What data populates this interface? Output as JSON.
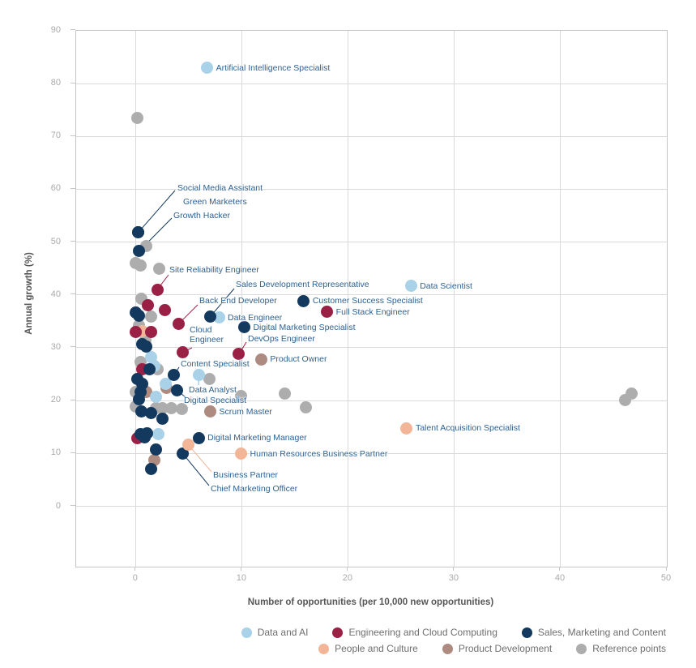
{
  "chart_data": {
    "type": "scatter",
    "title": "",
    "xlabel": "Number of opportunities (per 10,000 new opportunities)",
    "ylabel": "Annual growth (%)",
    "x_ticks": [
      0,
      10,
      20,
      30,
      40,
      50
    ],
    "y_ticks": [
      0,
      10,
      20,
      30,
      40,
      50,
      60,
      70,
      80,
      90
    ],
    "xlim": [
      -5.6,
      50.1
    ],
    "ylim": [
      -11.4,
      90
    ],
    "grid": true,
    "legend_position": "bottom-right",
    "categories": [
      {
        "id": "data_ai",
        "label": "Data and AI",
        "color": "#a9d1e8"
      },
      {
        "id": "engineering",
        "label": "Engineering and Cloud Computing",
        "color": "#9b2045"
      },
      {
        "id": "sales",
        "label": "Sales, Marketing and Content",
        "color": "#14395e"
      },
      {
        "id": "people",
        "label": "People and Culture",
        "color": "#f3b597"
      },
      {
        "id": "product",
        "label": "Product Development",
        "color": "#ae8b80"
      },
      {
        "id": "reference",
        "label": "Reference points",
        "color": "#adadad"
      }
    ],
    "labeled_points": [
      {
        "id": "artificial_intelligence_specialist",
        "name": "Artificial Intelligence Specialist",
        "category": "data_ai",
        "x": 6.7,
        "y": 83
      },
      {
        "id": "data_scientist",
        "name": "Data Scientist",
        "category": "data_ai",
        "x": 25.9,
        "y": 41.7
      },
      {
        "id": "data_engineer",
        "name": "Data Engineer",
        "category": "data_ai",
        "x": 7.8,
        "y": 35.7
      },
      {
        "id": "data_analyst",
        "name": "Data Analyst",
        "category": "data_ai",
        "x": 5.9,
        "y": 24.9
      },
      {
        "id": "social_media_assistant",
        "name": "Social Media Assistant",
        "category": "sales",
        "x": 0.2,
        "y": 51.8
      },
      {
        "id": "green_marketers",
        "name": "Green Marketers",
        "category": "sales",
        "x": 0.2,
        "y": 51.8
      },
      {
        "id": "growth_hacker",
        "name": "Growth Hacker",
        "category": "sales",
        "x": 0.3,
        "y": 48.3
      },
      {
        "id": "sales_development_representative",
        "name": "Sales Development Representative",
        "category": "sales",
        "x": 7.0,
        "y": 35.9
      },
      {
        "id": "digital_marketing_specialist",
        "name": "Digital Marketing Specialist",
        "category": "sales",
        "x": 10.2,
        "y": 33.9
      },
      {
        "id": "customer_success_specialist",
        "name": "Customer Success Specialist",
        "category": "sales",
        "x": 15.8,
        "y": 38.9
      },
      {
        "id": "content_specialist",
        "name": "Content Specialist",
        "category": "sales",
        "x": 3.6,
        "y": 24.9
      },
      {
        "id": "digital_specialist",
        "name": "Digital Specialist",
        "category": "sales",
        "x": 3.9,
        "y": 21.9
      },
      {
        "id": "digital_marketing_manager",
        "name": "Digital Marketing Manager",
        "category": "sales",
        "x": 5.9,
        "y": 12.9
      },
      {
        "id": "chief_marketing_officer",
        "name": "Chief Marketing Officer",
        "category": "sales",
        "x": 4.4,
        "y": 10
      },
      {
        "id": "site_reliability_engineer",
        "name": "Site Reliability Engineer",
        "category": "engineering",
        "x": 2.0,
        "y": 41
      },
      {
        "id": "back_end_developer",
        "name": "Back End Developer",
        "category": "engineering",
        "x": 4.0,
        "y": 34.5
      },
      {
        "id": "full_stack_engineer",
        "name": "Full Stack Engineer",
        "category": "engineering",
        "x": 18.0,
        "y": 36.8
      },
      {
        "id": "cloud_engineer",
        "name": "Cloud Engineer",
        "category": "engineering",
        "x": 4.4,
        "y": 29.2
      },
      {
        "id": "devops_engineer",
        "name": "DevOps Engineer",
        "category": "engineering",
        "x": 9.7,
        "y": 28.8
      },
      {
        "id": "product_owner",
        "name": "Product Owner",
        "category": "product",
        "x": 11.8,
        "y": 27.8
      },
      {
        "id": "scrum_master",
        "name": "Scrum Master",
        "category": "product",
        "x": 7.0,
        "y": 17.9
      },
      {
        "id": "business_partner",
        "name": "Business Partner",
        "category": "people",
        "x": 4.9,
        "y": 11.7
      },
      {
        "id": "human_resources_business_partner",
        "name": "Human Resources Business Partner",
        "category": "people",
        "x": 9.9,
        "y": 9.9
      },
      {
        "id": "talent_acquisition_specialist",
        "name": "Talent Acquisition Specialist",
        "category": "people",
        "x": 25.5,
        "y": 14.8
      }
    ],
    "unlabeled_points": [
      {
        "c": "reference",
        "x": 0.1,
        "y": 73.5
      },
      {
        "c": "reference",
        "x": 1.0,
        "y": 49.2
      },
      {
        "c": "reference",
        "x": 0.0,
        "y": 46.1
      },
      {
        "c": "reference",
        "x": 0.4,
        "y": 45.6
      },
      {
        "c": "reference",
        "x": 2.2,
        "y": 44.9
      },
      {
        "c": "reference",
        "x": 0.5,
        "y": 39.3
      },
      {
        "c": "reference",
        "x": 1.4,
        "y": 35.9
      },
      {
        "c": "reference",
        "x": 0.3,
        "y": 34.2
      },
      {
        "c": "reference",
        "x": 0.9,
        "y": 31.5
      },
      {
        "c": "reference",
        "x": 0.4,
        "y": 27.3
      },
      {
        "c": "reference",
        "x": 2.0,
        "y": 26.0
      },
      {
        "c": "reference",
        "x": 6.9,
        "y": 24.1
      },
      {
        "c": "reference",
        "x": 0.0,
        "y": 21.7
      },
      {
        "c": "reference",
        "x": 0.0,
        "y": 18.9
      },
      {
        "c": "reference",
        "x": 1.9,
        "y": 18.5
      },
      {
        "c": "reference",
        "x": 2.5,
        "y": 18.5
      },
      {
        "c": "reference",
        "x": 3.3,
        "y": 18.6
      },
      {
        "c": "reference",
        "x": 4.3,
        "y": 18.4
      },
      {
        "c": "reference",
        "x": 9.9,
        "y": 20.9
      },
      {
        "c": "reference",
        "x": 14.0,
        "y": 21.3
      },
      {
        "c": "reference",
        "x": 16.0,
        "y": 18.7
      },
      {
        "c": "reference",
        "x": 46.1,
        "y": 20.1
      },
      {
        "c": "reference",
        "x": 46.7,
        "y": 21.4
      },
      {
        "c": "product",
        "x": 2.9,
        "y": 22.4
      },
      {
        "c": "product",
        "x": 1.0,
        "y": 21.7
      },
      {
        "c": "product",
        "x": 1.7,
        "y": 8.8
      },
      {
        "c": "people",
        "x": 0.55,
        "y": 33.2
      },
      {
        "c": "data_ai",
        "x": 1.4,
        "y": 28.2
      },
      {
        "c": "data_ai",
        "x": 1.7,
        "y": 26.5
      },
      {
        "c": "data_ai",
        "x": 2.8,
        "y": 23.2
      },
      {
        "c": "data_ai",
        "x": 1.9,
        "y": 20.7
      },
      {
        "c": "data_ai",
        "x": 2.1,
        "y": 13.6
      },
      {
        "c": "engineering",
        "x": 1.1,
        "y": 38.0
      },
      {
        "c": "engineering",
        "x": 2.7,
        "y": 37.1
      },
      {
        "c": "engineering",
        "x": 0.0,
        "y": 33.0
      },
      {
        "c": "engineering",
        "x": 1.4,
        "y": 33.0
      },
      {
        "c": "engineering",
        "x": 0.6,
        "y": 26.0
      },
      {
        "c": "engineering",
        "x": 0.1,
        "y": 12.9
      },
      {
        "c": "sales",
        "x": 0.0,
        "y": 36.7
      },
      {
        "c": "sales",
        "x": 0.3,
        "y": 36.0
      },
      {
        "c": "sales",
        "x": 0.6,
        "y": 30.7
      },
      {
        "c": "sales",
        "x": 1.0,
        "y": 30.2
      },
      {
        "c": "sales",
        "x": 1.3,
        "y": 26.0
      },
      {
        "c": "sales",
        "x": 0.1,
        "y": 24.1
      },
      {
        "c": "sales",
        "x": 0.6,
        "y": 23.1
      },
      {
        "c": "sales",
        "x": 0.4,
        "y": 21.7
      },
      {
        "c": "sales",
        "x": 0.25,
        "y": 20.2
      },
      {
        "c": "sales",
        "x": 0.5,
        "y": 17.9
      },
      {
        "c": "sales",
        "x": 1.4,
        "y": 17.6
      },
      {
        "c": "sales",
        "x": 2.5,
        "y": 16.6
      },
      {
        "c": "sales",
        "x": 0.45,
        "y": 13.7
      },
      {
        "c": "sales",
        "x": 1.05,
        "y": 13.8
      },
      {
        "c": "sales",
        "x": 0.8,
        "y": 13.0
      },
      {
        "c": "sales",
        "x": 1.9,
        "y": 10.7
      },
      {
        "c": "sales",
        "x": 1.4,
        "y": 7.0
      }
    ]
  }
}
